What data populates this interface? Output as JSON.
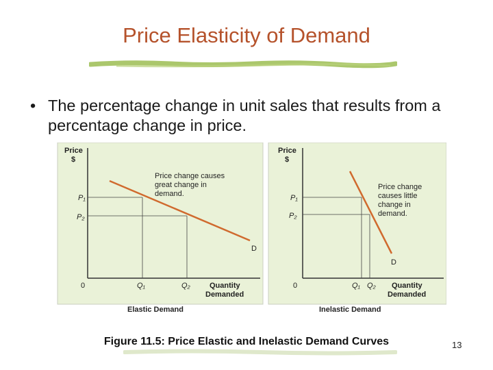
{
  "slide": {
    "title": "Price Elasticity of Demand",
    "bullet": "The percentage change in unit sales that results from a percentage change in price.",
    "caption": "Figure 11.5: Price Elastic and Inelastic Demand Curves",
    "page_number": "13",
    "accent_color": "#b5522b",
    "underline_color": "#9cbd52"
  },
  "diagram": {
    "left": {
      "y_label_1": "Price",
      "y_label_2": "$",
      "p1": "P₁",
      "p2": "P₂",
      "origin": "0",
      "q1": "Q₁",
      "q2": "Q₂",
      "x_label_1": "Quantity",
      "x_label_2": "Demanded",
      "annotation_1": "Price change causes",
      "annotation_2": "great change in",
      "annotation_3": "demand.",
      "curve_label": "D",
      "panel_title": "Elastic Demand"
    },
    "right": {
      "y_label_1": "Price",
      "y_label_2": "$",
      "p1": "P₁",
      "p2": "P₂",
      "origin": "0",
      "q1": "Q₁",
      "q2": "Q₂",
      "x_label_1": "Quantity",
      "x_label_2": "Demanded",
      "annotation_1": "Price change",
      "annotation_2": "causes little",
      "annotation_3": "change in",
      "annotation_4": "demand.",
      "curve_label": "D",
      "panel_title": "Inelastic Demand"
    },
    "panel_background": "#eaf2d8",
    "curve_color": "#d06a2e"
  }
}
